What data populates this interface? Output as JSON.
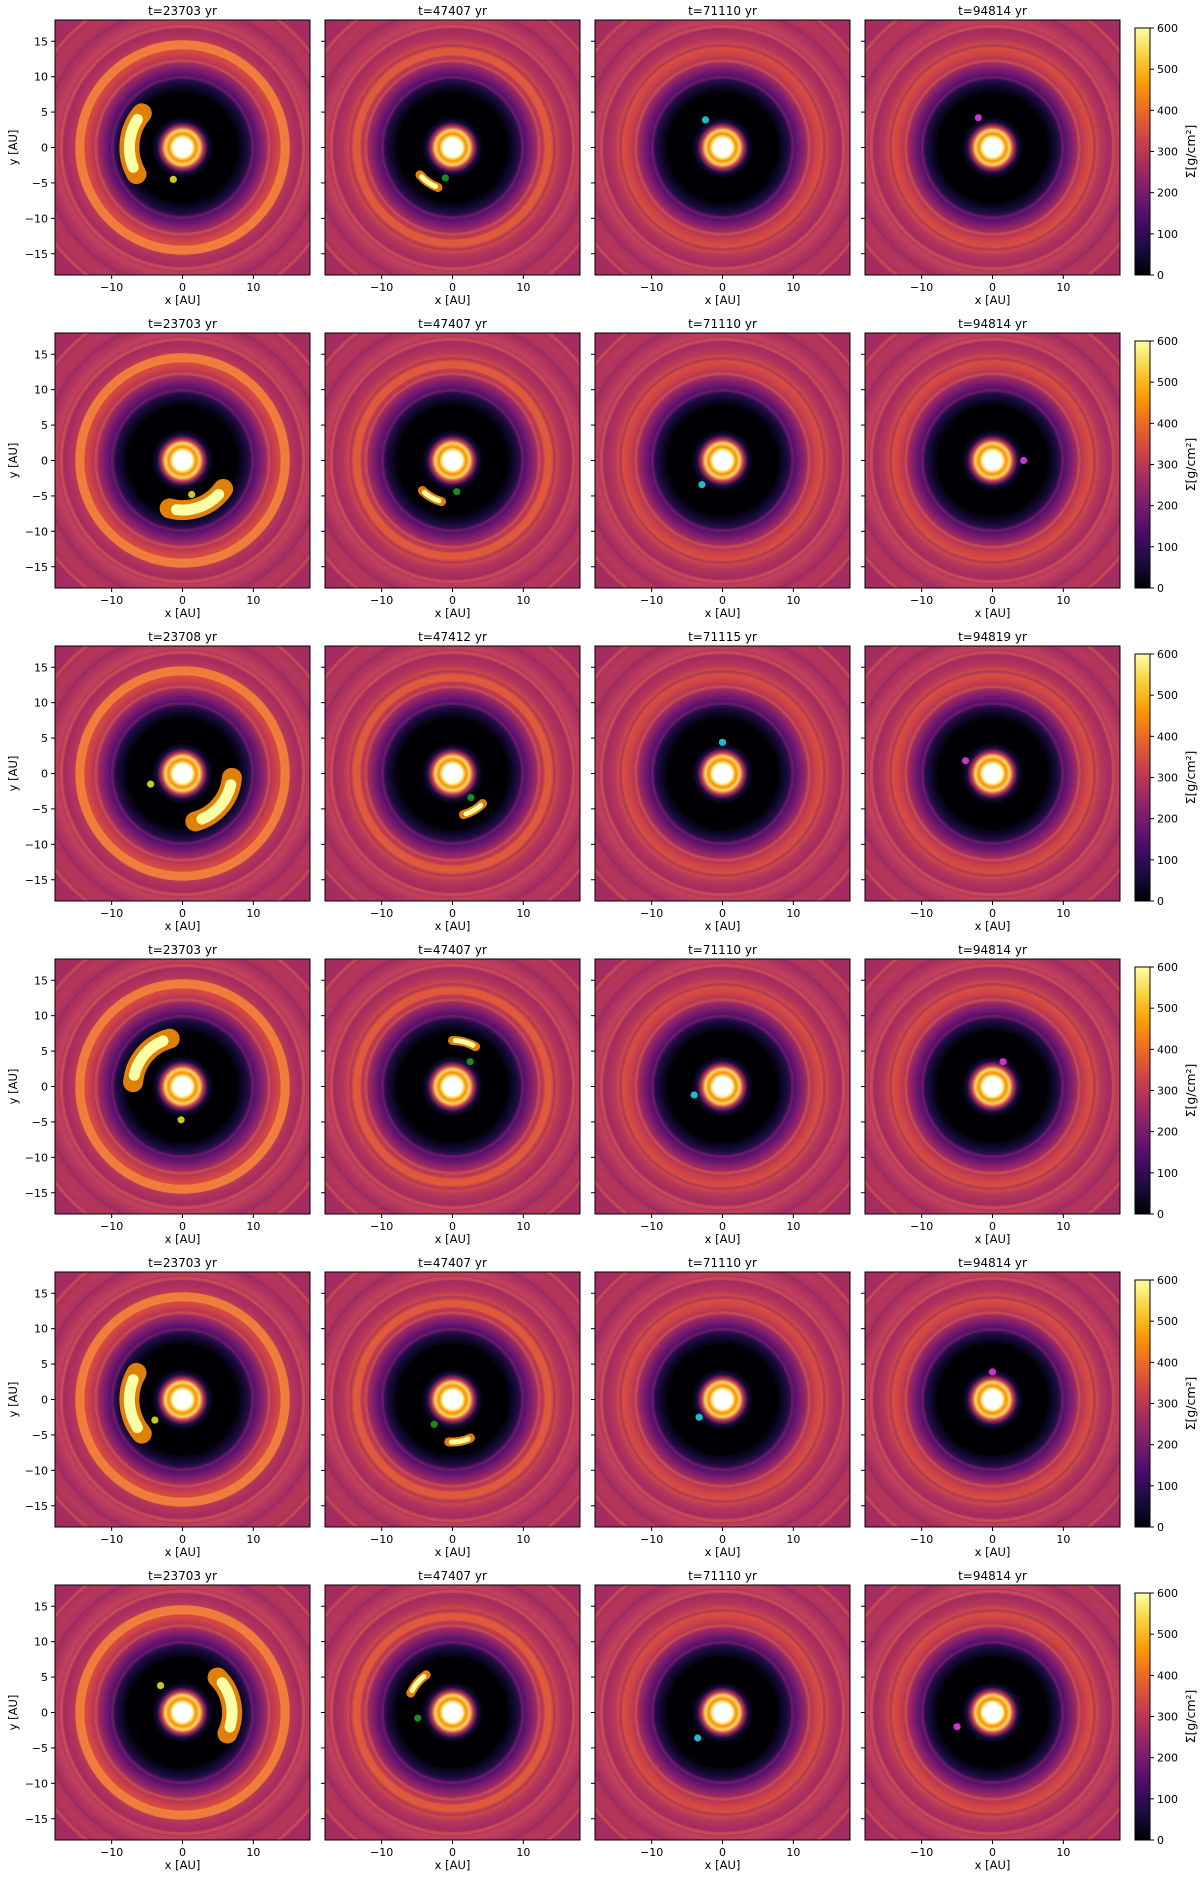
{
  "figure": {
    "rows": 6,
    "cols": 4
  },
  "colors": {
    "colormap": [
      "#000004",
      "#1b0c41",
      "#4a0c6b",
      "#781c6d",
      "#a52c60",
      "#cf4446",
      "#ed6925",
      "#fb9b06",
      "#f7d13d",
      "#fcffa4"
    ],
    "planet_markers": [
      "#c8c820",
      "#1a8a1a",
      "#17becf",
      "#cc33cc"
    ]
  },
  "chart_data": {
    "type": "heatmap",
    "description_free": true,
    "xlabel": "x [AU]",
    "ylabel": "y [AU]",
    "xlim": [
      -18,
      18
    ],
    "ylim": [
      -18,
      18
    ],
    "xticks": [
      -10,
      0,
      10
    ],
    "yticks": [
      -15,
      -10,
      -5,
      0,
      5,
      10,
      15
    ],
    "colorbar": {
      "label": "Σ[g/cm²]",
      "range": [
        0,
        600
      ],
      "ticks": [
        0,
        100,
        200,
        300,
        400,
        500,
        600
      ]
    },
    "panels": [
      {
        "row": 0,
        "col": 0,
        "title": "t=23703 yr",
        "planet": {
          "x": -1.3,
          "y": -4.5,
          "color": "#c8c820"
        },
        "arc": {
          "angle_deg": 175,
          "width_deg": 70,
          "r": 7.5
        }
      },
      {
        "row": 0,
        "col": 1,
        "title": "t=47407 yr",
        "planet": {
          "x": -1.0,
          "y": -4.3,
          "color": "#1a8a1a"
        },
        "arc": {
          "angle_deg": 235,
          "width_deg": 30,
          "r": 6.0
        }
      },
      {
        "row": 0,
        "col": 2,
        "title": "t=71110 yr",
        "planet": {
          "x": -2.4,
          "y": 3.9,
          "color": "#17becf"
        },
        "arc": null
      },
      {
        "row": 0,
        "col": 3,
        "title": "t=94814 yr",
        "planet": {
          "x": -2.0,
          "y": 4.2,
          "color": "#cc33cc"
        },
        "arc": null
      },
      {
        "row": 1,
        "col": 0,
        "title": "t=23703 yr",
        "planet": {
          "x": 1.3,
          "y": -4.8,
          "color": "#c8c820"
        },
        "arc": {
          "angle_deg": 290,
          "width_deg": 70,
          "r": 7.0
        }
      },
      {
        "row": 1,
        "col": 1,
        "title": "t=47407 yr",
        "planet": {
          "x": 0.6,
          "y": -4.4,
          "color": "#1a8a1a"
        },
        "arc": {
          "angle_deg": 240,
          "width_deg": 30,
          "r": 6.0
        }
      },
      {
        "row": 1,
        "col": 2,
        "title": "t=71110 yr",
        "planet": {
          "x": -2.9,
          "y": -3.4,
          "color": "#17becf"
        },
        "arc": null
      },
      {
        "row": 1,
        "col": 3,
        "title": "t=94814 yr",
        "planet": {
          "x": 4.4,
          "y": 0.0,
          "color": "#cc33cc"
        },
        "arc": null
      },
      {
        "row": 2,
        "col": 0,
        "title": "t=23708 yr",
        "planet": {
          "x": -4.5,
          "y": -1.5,
          "color": "#c8c820"
        },
        "arc": {
          "angle_deg": 320,
          "width_deg": 70,
          "r": 7.0
        }
      },
      {
        "row": 2,
        "col": 1,
        "title": "t=47412 yr",
        "planet": {
          "x": 2.6,
          "y": -3.4,
          "color": "#1a8a1a"
        },
        "arc": {
          "angle_deg": 300,
          "width_deg": 30,
          "r": 6.0
        }
      },
      {
        "row": 2,
        "col": 2,
        "title": "t=71115 yr",
        "planet": {
          "x": 0.0,
          "y": 4.4,
          "color": "#17becf"
        },
        "arc": null
      },
      {
        "row": 2,
        "col": 3,
        "title": "t=94819 yr",
        "planet": {
          "x": -3.8,
          "y": 1.8,
          "color": "#cc33cc"
        },
        "arc": null
      },
      {
        "row": 3,
        "col": 0,
        "title": "t=23703 yr",
        "planet": {
          "x": -0.2,
          "y": -4.7,
          "color": "#c8c820"
        },
        "arc": {
          "angle_deg": 140,
          "width_deg": 70,
          "r": 7.0
        }
      },
      {
        "row": 3,
        "col": 1,
        "title": "t=47407 yr",
        "planet": {
          "x": 2.5,
          "y": 3.5,
          "color": "#1a8a1a"
        },
        "arc": {
          "angle_deg": 75,
          "width_deg": 30,
          "r": 6.5
        }
      },
      {
        "row": 3,
        "col": 2,
        "title": "t=71110 yr",
        "planet": {
          "x": -4.0,
          "y": -1.2,
          "color": "#17becf"
        },
        "arc": null
      },
      {
        "row": 3,
        "col": 3,
        "title": "t=94814 yr",
        "planet": {
          "x": 1.5,
          "y": 3.5,
          "color": "#cc33cc"
        },
        "arc": null
      },
      {
        "row": 4,
        "col": 0,
        "title": "t=23703 yr",
        "planet": {
          "x": -3.9,
          "y": -2.9,
          "color": "#c8c820"
        },
        "arc": {
          "angle_deg": 185,
          "width_deg": 70,
          "r": 7.5
        }
      },
      {
        "row": 4,
        "col": 1,
        "title": "t=47407 yr",
        "planet": {
          "x": -2.6,
          "y": -3.5,
          "color": "#1a8a1a"
        },
        "arc": {
          "angle_deg": 280,
          "width_deg": 30,
          "r": 6.0
        }
      },
      {
        "row": 4,
        "col": 2,
        "title": "t=71110 yr",
        "planet": {
          "x": -3.3,
          "y": -2.5,
          "color": "#17becf"
        },
        "arc": null
      },
      {
        "row": 4,
        "col": 3,
        "title": "t=94814 yr",
        "planet": {
          "x": 0.0,
          "y": 3.9,
          "color": "#cc33cc"
        },
        "arc": null
      },
      {
        "row": 5,
        "col": 0,
        "title": "t=23703 yr",
        "planet": {
          "x": -3.1,
          "y": 3.8,
          "color": "#c8c820"
        },
        "arc": {
          "angle_deg": 10,
          "width_deg": 70,
          "r": 7.0
        }
      },
      {
        "row": 5,
        "col": 1,
        "title": "t=47407 yr",
        "planet": {
          "x": -4.9,
          "y": -0.8,
          "color": "#1a8a1a"
        },
        "arc": {
          "angle_deg": 140,
          "width_deg": 30,
          "r": 6.5
        }
      },
      {
        "row": 5,
        "col": 2,
        "title": "t=71110 yr",
        "planet": {
          "x": -3.5,
          "y": -3.6,
          "color": "#17becf"
        },
        "arc": null
      },
      {
        "row": 5,
        "col": 3,
        "title": "t=94814 yr",
        "planet": {
          "x": -5.0,
          "y": -2.0,
          "color": "#cc33cc"
        },
        "arc": null
      }
    ]
  }
}
